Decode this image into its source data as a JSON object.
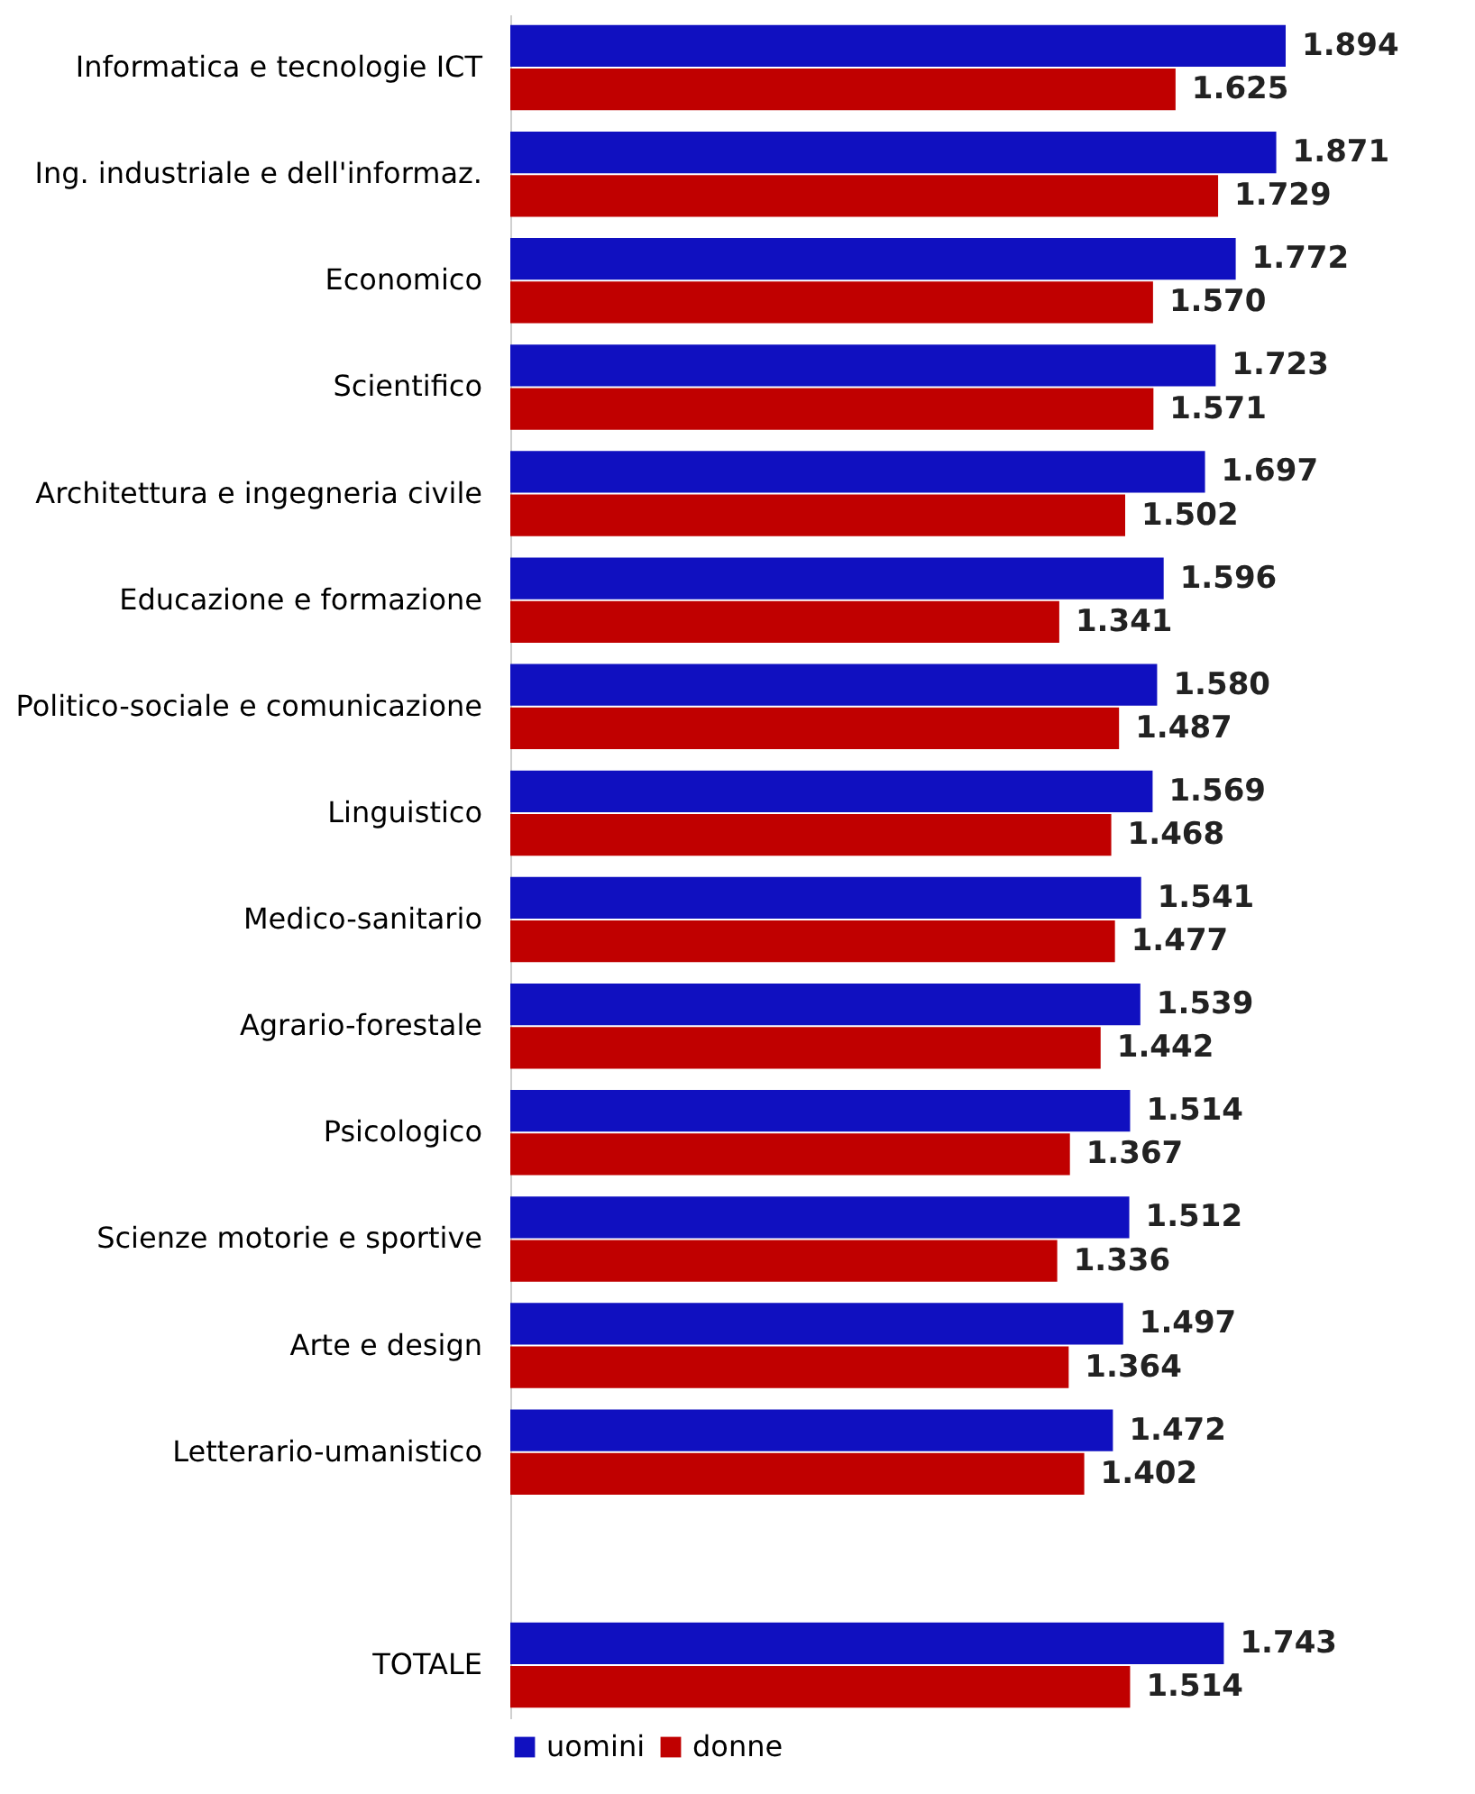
{
  "chart_data": {
    "type": "bar",
    "orientation": "horizontal",
    "legend": "bottom",
    "categories": [
      "Informatica e tecnologie ICT",
      "Ing. industriale e dell'informaz.",
      "Economico",
      "Scientifico",
      "Architettura e ingegneria civile",
      "Educazione e formazione",
      "Politico-sociale e comunicazione",
      "Linguistico",
      "Medico-sanitario",
      "Agrario-forestale",
      "Psicologico",
      "Scienze motorie e sportive",
      "Arte e design",
      "Letterario-umanistico",
      null,
      "TOTALE"
    ],
    "series": [
      {
        "name": "uomini",
        "color": "#1010c0",
        "values": [
          1894,
          1871,
          1772,
          1723,
          1697,
          1596,
          1580,
          1569,
          1541,
          1539,
          1514,
          1512,
          1497,
          1472,
          null,
          1743
        ],
        "value_labels": [
          "1.894",
          "1.871",
          "1.772",
          "1.723",
          "1.697",
          "1.596",
          "1.580",
          "1.569",
          "1.541",
          "1.539",
          "1.514",
          "1.512",
          "1.497",
          "1.472",
          null,
          "1.743"
        ]
      },
      {
        "name": "donne",
        "color": "#c00000",
        "values": [
          1625,
          1729,
          1570,
          1571,
          1502,
          1341,
          1487,
          1468,
          1477,
          1442,
          1367,
          1336,
          1364,
          1402,
          null,
          1514
        ],
        "value_labels": [
          "1.625",
          "1.729",
          "1.570",
          "1.571",
          "1.502",
          "1.341",
          "1.487",
          "1.468",
          "1.477",
          "1.442",
          "1.367",
          "1.336",
          "1.364",
          "1.402",
          null,
          "1.514"
        ]
      }
    ]
  }
}
